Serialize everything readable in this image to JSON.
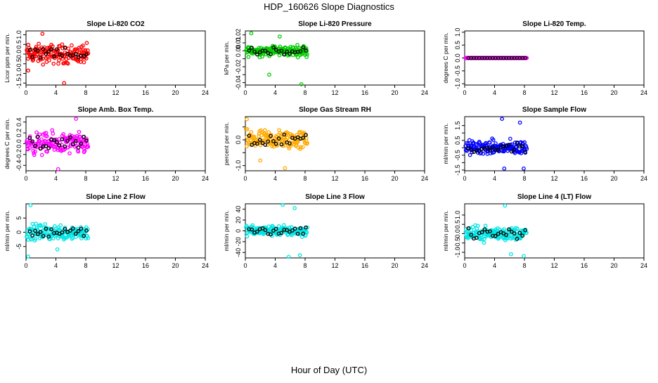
{
  "title": "HDP_160626  Slope Diagnostics",
  "xlabel": "Hour of Day (UTC)",
  "chart_data": [
    {
      "type": "scatter",
      "title": "Slope Li-820 CO2",
      "ylabel": "Licor ppm per min.",
      "color": "#ff0000",
      "xlim": [
        0,
        24
      ],
      "xticks": [
        0,
        4,
        8,
        12,
        16,
        20,
        24
      ],
      "ylim": [
        -1.6,
        1.2
      ],
      "yticks": [
        -1.5,
        -1.0,
        -0.5,
        0.0,
        0.5,
        1.0
      ],
      "ytick_labels": [
        "-1.5",
        "-1.0",
        "-0.5",
        "0.0",
        "0.5",
        "1.0"
      ],
      "x_range": [
        0.1,
        8.3
      ],
      "spread": 0.45,
      "outliers": [
        [
          2.2,
          1.05
        ],
        [
          5.1,
          -1.5
        ],
        [
          0.3,
          -0.85
        ]
      ]
    },
    {
      "type": "scatter",
      "title": "Slope Li-820 Pressure",
      "ylabel": "kPa per min.",
      "color": "#00cc00",
      "xlim": [
        0,
        24
      ],
      "xticks": [
        0,
        4,
        8,
        12,
        16,
        20,
        24
      ],
      "ylim": [
        -0.043,
        0.025
      ],
      "yticks": [
        -0.04,
        -0.03,
        -0.02,
        -0.01,
        0.0,
        0.01,
        0.02
      ],
      "ytick_labels": [
        "-0.04",
        "",
        "-0.02",
        "",
        "0.00",
        "0.01",
        "0.02"
      ],
      "x_range": [
        0.1,
        8.3
      ],
      "spread": 0.006,
      "outliers": [
        [
          0.8,
          0.022
        ],
        [
          7.5,
          -0.042
        ],
        [
          4.6,
          0.018
        ],
        [
          3.2,
          -0.03
        ]
      ]
    },
    {
      "type": "scatter",
      "title": "Slope Li-820 Temp.",
      "ylabel": "degrees C per min.",
      "color": "#ff00ff",
      "xlim": [
        0,
        24
      ],
      "xticks": [
        0,
        4,
        8,
        12,
        16,
        20,
        24
      ],
      "ylim": [
        -1.05,
        1.05
      ],
      "yticks": [
        -1.0,
        -0.5,
        0.0,
        0.5,
        1.0
      ],
      "ytick_labels": [
        "-1.0",
        "-0.5",
        "0.0",
        "0.5",
        "1.0"
      ],
      "x_range": [
        0.1,
        8.3
      ],
      "spread": 0.0,
      "outliers": []
    },
    {
      "type": "scatter",
      "title": "Slope Amb. Box Temp.",
      "ylabel": "degrees C per min.",
      "color": "#ff00ff",
      "xlim": [
        0,
        24
      ],
      "xticks": [
        0,
        4,
        8,
        12,
        16,
        20,
        24
      ],
      "ylim": [
        -0.5,
        0.5
      ],
      "yticks": [
        -0.4,
        -0.2,
        0.0,
        0.2,
        0.4
      ],
      "ytick_labels": [
        "-0.4",
        "-0.2",
        "0.0",
        "0.2",
        "0.4"
      ],
      "x_range": [
        0.1,
        8.3
      ],
      "spread": 0.18,
      "outliers": [
        [
          4.3,
          -0.47
        ],
        [
          6.7,
          0.46
        ]
      ]
    },
    {
      "type": "scatter",
      "title": "Slope Gas Stream RH",
      "ylabel": "percent per min.",
      "color": "#ffaa00",
      "xlim": [
        0,
        24
      ],
      "xticks": [
        0,
        4,
        8,
        12,
        16,
        20,
        24
      ],
      "ylim": [
        -1.2,
        0.9
      ],
      "yticks": [
        -1.0,
        -0.5,
        0.0,
        0.5
      ],
      "ytick_labels": [
        "-1.0",
        "",
        "0.0",
        ""
      ],
      "x_range": [
        0.1,
        8.3
      ],
      "spread": 0.35,
      "outliers": [
        [
          0.2,
          0.8
        ],
        [
          5.3,
          -1.1
        ],
        [
          2.0,
          -0.8
        ]
      ]
    },
    {
      "type": "scatter",
      "title": "Slope Sample Flow",
      "ylabel": "ml/min per min.",
      "color": "#0000ff",
      "xlim": [
        0,
        24
      ],
      "xticks": [
        0,
        4,
        8,
        12,
        16,
        20,
        24
      ],
      "ylim": [
        -1.55,
        2.1
      ],
      "yticks": [
        -1.5,
        -1.0,
        -0.5,
        0.0,
        0.5,
        1.0,
        1.5
      ],
      "ytick_labels": [
        "-1.5",
        "",
        "-0.5",
        "",
        "0.5",
        "",
        "1.5"
      ],
      "x_range": [
        0.1,
        8.3
      ],
      "spread": 0.45,
      "outliers": [
        [
          5.0,
          1.95
        ],
        [
          7.4,
          1.7
        ],
        [
          7.9,
          -1.4
        ],
        [
          5.3,
          -1.4
        ]
      ]
    },
    {
      "type": "scatter",
      "title": "Slope Line 2 Flow",
      "ylabel": "ml/min per min.",
      "color": "#00e5e5",
      "xlim": [
        0,
        24
      ],
      "xticks": [
        0,
        4,
        8,
        12,
        16,
        20,
        24
      ],
      "ylim": [
        -9,
        10
      ],
      "yticks": [
        -5,
        0,
        5
      ],
      "ytick_labels": [
        "-5",
        "0",
        "5"
      ],
      "x_range": [
        0.1,
        8.3
      ],
      "spread": 2.5,
      "outliers": [
        [
          0.3,
          -8.5
        ],
        [
          0.6,
          9.5
        ],
        [
          4.2,
          -6
        ]
      ]
    },
    {
      "type": "scatter",
      "title": "Slope Line 3 Flow",
      "ylabel": "ml/min per min.",
      "color": "#00e5e5",
      "xlim": [
        0,
        24
      ],
      "xticks": [
        0,
        4,
        8,
        12,
        16,
        20,
        24
      ],
      "ylim": [
        -50,
        50
      ],
      "yticks": [
        -40,
        -20,
        0,
        20,
        40
      ],
      "ytick_labels": [
        "-40",
        "-20",
        "0",
        "20",
        "40"
      ],
      "x_range": [
        0.1,
        8.3
      ],
      "spread": 9,
      "outliers": [
        [
          5.0,
          48
        ],
        [
          7.3,
          -45
        ],
        [
          5.8,
          -48
        ],
        [
          6.6,
          42
        ]
      ]
    },
    {
      "type": "scatter",
      "title": "Slope Line 4 (LT) Flow",
      "ylabel": "ml/min per min.",
      "color": "#00e5e5",
      "xlim": [
        0,
        24
      ],
      "xticks": [
        0,
        4,
        8,
        12,
        16,
        20,
        24
      ],
      "ylim": [
        -1.3,
        1.6
      ],
      "yticks": [
        -1.0,
        -0.5,
        0.0,
        0.5,
        1.0
      ],
      "ytick_labels": [
        "-1.0",
        "-0.5",
        "0.0",
        "0.5",
        "1.0"
      ],
      "x_range": [
        0.1,
        8.3
      ],
      "spread": 0.35,
      "outliers": [
        [
          5.4,
          1.5
        ],
        [
          7.9,
          -1.2
        ],
        [
          6.2,
          -1.1
        ]
      ]
    }
  ]
}
